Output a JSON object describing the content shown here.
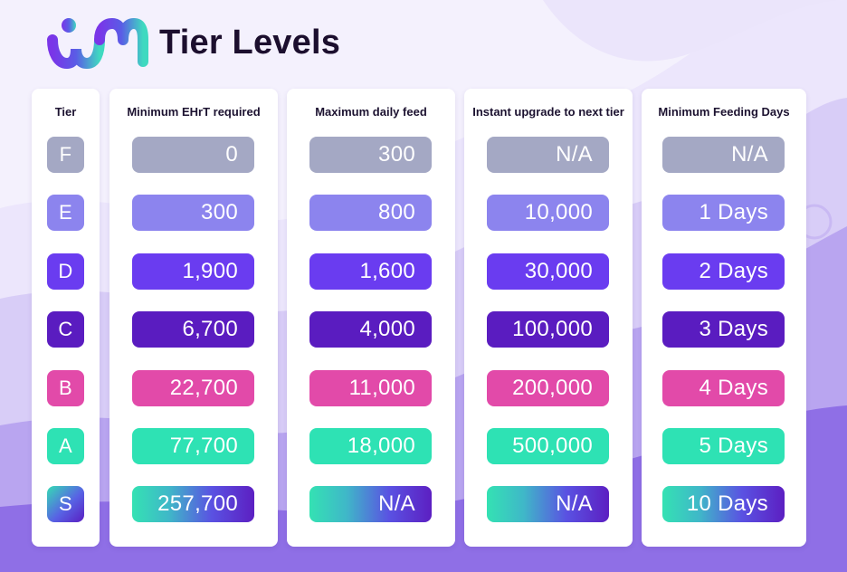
{
  "header": {
    "logo_text": "IM",
    "title": "Tier Levels"
  },
  "columns": {
    "tier": "Tier",
    "min_ehrt": "Minimum EHrT required",
    "max_daily_feed": "Maximum daily feed",
    "instant_upgrade": "Instant upgrade to next tier",
    "min_feeding_days": "Minimum Feeding Days"
  },
  "rows": [
    {
      "tier": "F",
      "min_ehrt": "0",
      "max_daily_feed": "300",
      "instant_upgrade": "N/A",
      "min_feeding_days": "N/A"
    },
    {
      "tier": "E",
      "min_ehrt": "300",
      "max_daily_feed": "800",
      "instant_upgrade": "10,000",
      "min_feeding_days": "1 Days"
    },
    {
      "tier": "D",
      "min_ehrt": "1,900",
      "max_daily_feed": "1,600",
      "instant_upgrade": "30,000",
      "min_feeding_days": "2 Days"
    },
    {
      "tier": "C",
      "min_ehrt": "6,700",
      "max_daily_feed": "4,000",
      "instant_upgrade": "100,000",
      "min_feeding_days": "3 Days"
    },
    {
      "tier": "B",
      "min_ehrt": "22,700",
      "max_daily_feed": "11,000",
      "instant_upgrade": "200,000",
      "min_feeding_days": "4 Days"
    },
    {
      "tier": "A",
      "min_ehrt": "77,700",
      "max_daily_feed": "18,000",
      "instant_upgrade": "500,000",
      "min_feeding_days": "5 Days"
    },
    {
      "tier": "S",
      "min_ehrt": "257,700",
      "max_daily_feed": "N/A",
      "instant_upgrade": "N/A",
      "min_feeding_days": "10 Days"
    }
  ],
  "tier_colors": {
    "F": "#a4a8c4",
    "E": "#8c84ee",
    "D": "#6a3cf0",
    "C": "#5a1cc0",
    "B": "#e24aa9",
    "A": "#2ee2b4",
    "S": "gradient #34e2b3 to #5c1fc2"
  },
  "icons": {
    "logo": "im-brand-logo"
  }
}
